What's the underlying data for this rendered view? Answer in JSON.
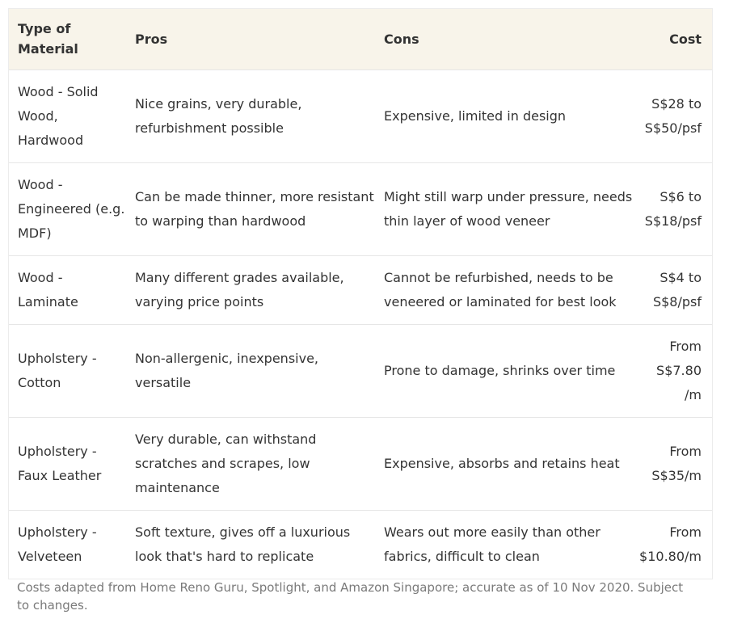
{
  "table": {
    "headers": [
      "Type of Material",
      "Pros",
      "Cons",
      "Cost"
    ],
    "rows": [
      {
        "material": "Wood - Solid Wood, Hardwood",
        "pros": "Nice grains, very durable, refurbishment possible",
        "cons": "Expensive, limited in design",
        "cost": "S$28 to S$50/psf"
      },
      {
        "material": "Wood - Engineered (e.g. MDF)",
        "pros": "Can be made thinner, more resistant to warping than hardwood",
        "cons": "Might still warp under pressure, needs thin layer of wood veneer",
        "cost": "S$6 to S$18/psf"
      },
      {
        "material": "Wood - Laminate",
        "pros": "Many different grades available, varying price points",
        "cons": "Cannot be refurbished, needs to be veneered or laminated for best look",
        "cost": "S$4 to S$8/psf"
      },
      {
        "material": "Upholstery - Cotton",
        "pros": "Non-allergenic, inexpensive, versatile",
        "cons": "Prone to damage, shrinks over time",
        "cost": "From S$7.80 /m"
      },
      {
        "material": "Upholstery - Faux Leather",
        "pros": "Very durable, can withstand scratches and scrapes, low maintenance",
        "cons": "Expensive, absorbs and retains heat",
        "cost": "From S$35/m"
      },
      {
        "material": "Upholstery - Velveteen",
        "pros": "Soft texture, gives off a luxurious look that's hard to replicate",
        "cons": "Wears out more easily than other fabrics, difficult to clean",
        "cost": "From $10.80/m"
      }
    ]
  },
  "caption": "Costs adapted from Home Reno Guru, Spotlight, and Amazon Singapore; accurate as of 10 Nov 2020. Subject to changes.",
  "colors": {
    "header_bg": "#f8f4ea",
    "text": "#333333",
    "caption_text": "#7a7a7a",
    "row_divider": "#e6e6e6"
  }
}
